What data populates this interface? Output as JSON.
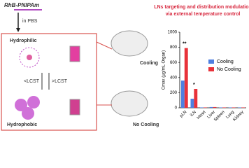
{
  "diagram": {
    "polymer": "RhB-PNIPAm",
    "solvent": "in PBS",
    "state_top": "Hydrophilic",
    "below": "<LCST",
    "above": ">LCST",
    "state_bottom": "Hydrophobic",
    "mouse_top": "Cooling",
    "mouse_bottom": "No Cooling"
  },
  "chart_data": {
    "type": "bar",
    "title": [
      "LNs targeting and distribution modulation",
      "via external temperature control"
    ],
    "y_label": "Cmax (μg/mL Organ)",
    "categories": [
      "pLN",
      "iLN",
      "Heart",
      "Liver",
      "Spleen",
      "Lung",
      "Kidney"
    ],
    "series": [
      {
        "name": "Cooling",
        "color": "#4f7fe0",
        "values": [
          360,
          120,
          5,
          10,
          5,
          5,
          5
        ]
      },
      {
        "name": "No Cooling",
        "color": "#e8323a",
        "values": [
          790,
          250,
          5,
          10,
          5,
          5,
          5
        ]
      }
    ],
    "ylim": [
      0,
      1000
    ],
    "yticks": [
      0,
      200,
      400,
      600,
      800,
      1000
    ],
    "annotations": [
      {
        "text": "**",
        "category": "pLN"
      },
      {
        "text": "*",
        "category": "iLN"
      }
    ]
  }
}
